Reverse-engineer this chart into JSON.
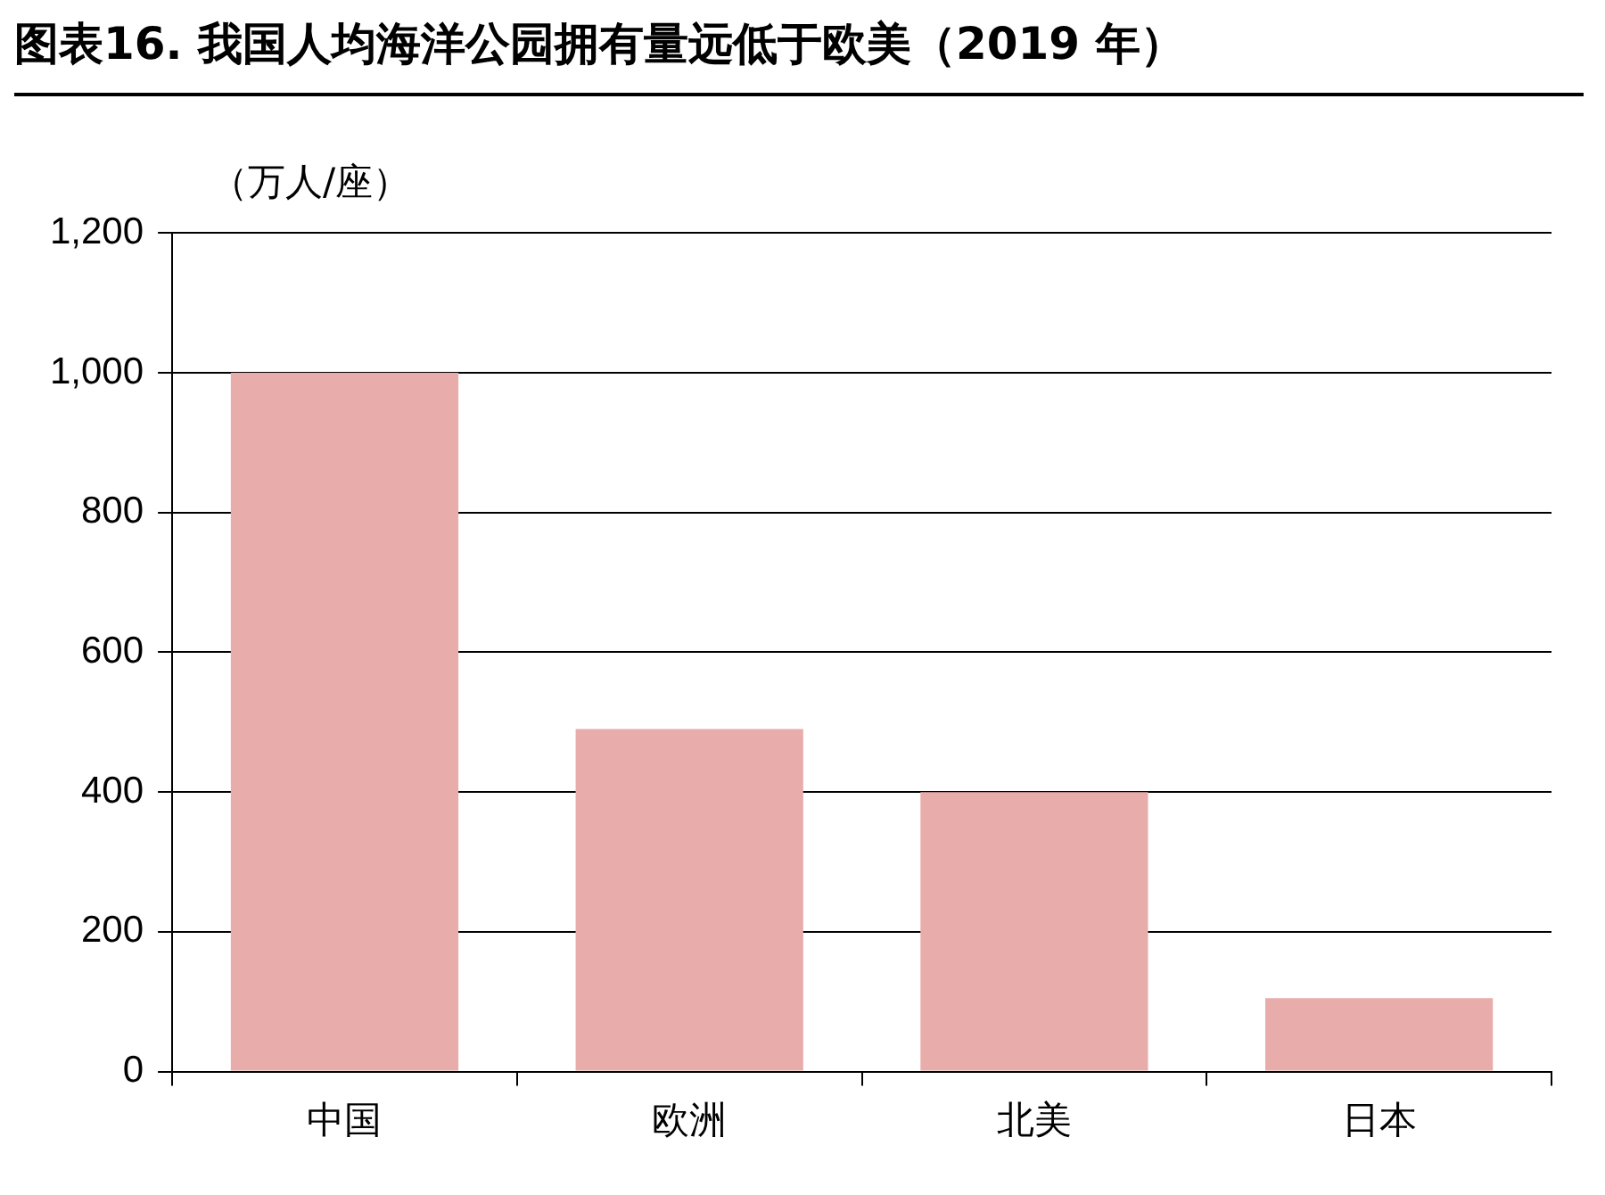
{
  "chart_data": {
    "type": "bar",
    "title": "图表16. 我国人均海洋公园拥有量远低于欧美（2019 年）",
    "ylabel": "（万人/座）",
    "categories": [
      "中国",
      "欧洲",
      "北美",
      "日本"
    ],
    "values": [
      1000,
      490,
      400,
      105
    ],
    "color": "#e8acab",
    "ylim": [
      0,
      1200
    ],
    "yticks": [
      0,
      {
        "value": 200,
        "label": "200"
      },
      400,
      600,
      800,
      {
        "value": 1000,
        "label": "1,000"
      },
      {
        "value": 1200,
        "label": "1,200"
      }
    ],
    "grid": "y",
    "legend": false
  }
}
